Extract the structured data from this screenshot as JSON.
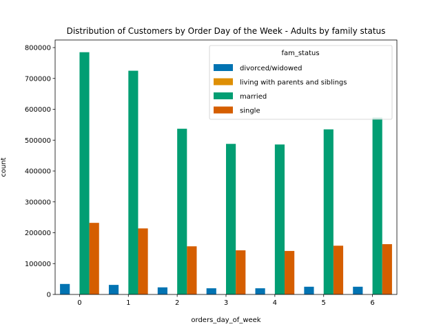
{
  "chart_data": {
    "type": "bar",
    "title": "Distribution of Customers by Order Day of the Week - Adults by family status",
    "xlabel": "orders_day_of_week",
    "ylabel": "count",
    "categories": [
      "0",
      "1",
      "2",
      "3",
      "4",
      "5",
      "6"
    ],
    "ylim": [
      0,
      800000
    ],
    "yticks": [
      0,
      100000,
      200000,
      300000,
      400000,
      500000,
      600000,
      700000,
      800000
    ],
    "ytick_labels": [
      "0",
      "100000",
      "200000",
      "300000",
      "400000",
      "500000",
      "600000",
      "700000",
      "800000"
    ],
    "grid": false,
    "legend": {
      "title": "fam_status",
      "placement": "top-right"
    },
    "series": [
      {
        "name": "divorced/widowed",
        "color": "#0173b2",
        "values": [
          34000,
          31000,
          23000,
          20000,
          20000,
          25000,
          25000
        ]
      },
      {
        "name": "living with parents and siblings",
        "color": "#de8f05",
        "values": [
          0,
          0,
          0,
          0,
          0,
          0,
          0
        ]
      },
      {
        "name": "married",
        "color": "#029e73",
        "values": [
          785000,
          725000,
          537000,
          488000,
          486000,
          535000,
          573000
        ]
      },
      {
        "name": "single",
        "color": "#d55e00",
        "values": [
          232000,
          214000,
          156000,
          143000,
          141000,
          158000,
          163000
        ]
      }
    ]
  }
}
